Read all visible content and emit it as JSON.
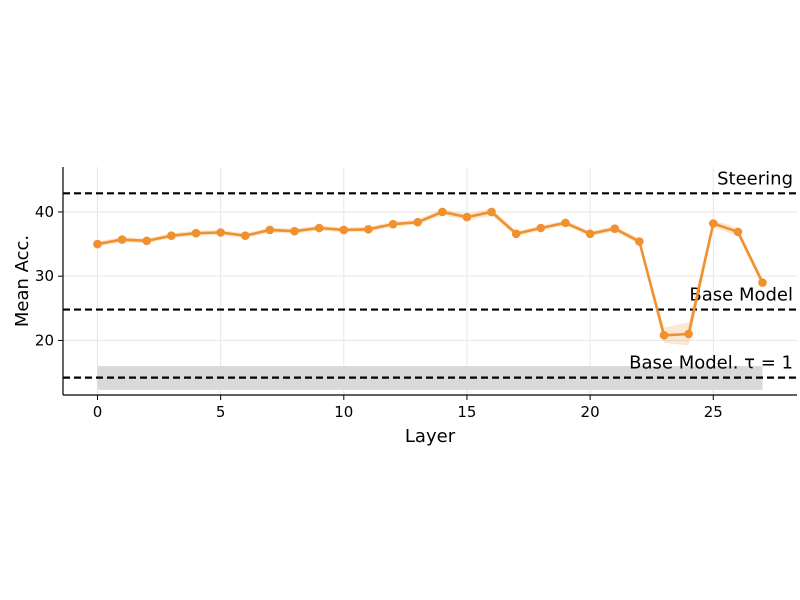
{
  "chart_data": {
    "type": "line",
    "title": "",
    "xlabel": "Layer",
    "ylabel": "Mean Acc.",
    "xlim": [
      -1.4,
      28.4
    ],
    "ylim": [
      11.5,
      47
    ],
    "xticks": [
      0,
      5,
      10,
      15,
      20,
      25
    ],
    "yticks": [
      20,
      30,
      40
    ],
    "grid": true,
    "series": [
      {
        "color": "#f0902e",
        "x": [
          0,
          1,
          2,
          3,
          4,
          5,
          6,
          7,
          8,
          9,
          10,
          11,
          12,
          13,
          14,
          15,
          16,
          17,
          18,
          19,
          20,
          21,
          22,
          23,
          24,
          25,
          26,
          27
        ],
        "y": [
          35.0,
          35.7,
          35.5,
          36.3,
          36.7,
          36.8,
          36.3,
          37.2,
          37.0,
          37.5,
          37.2,
          37.3,
          38.1,
          38.4,
          40.0,
          39.2,
          40.0,
          36.6,
          37.5,
          38.3,
          36.6,
          37.4,
          35.4,
          20.8,
          21.0,
          38.2,
          36.9,
          29.0
        ],
        "band_halfwidth": [
          0.4,
          0.4,
          0.4,
          0.4,
          0.4,
          0.4,
          0.4,
          0.4,
          0.4,
          0.4,
          0.4,
          0.4,
          0.4,
          0.4,
          0.5,
          0.5,
          0.6,
          0.4,
          0.4,
          0.4,
          0.4,
          0.4,
          0.5,
          1.2,
          1.8,
          0.6,
          0.6,
          0.6
        ]
      }
    ],
    "reference_lines": [
      {
        "label": "Steering",
        "y": 42.9,
        "style": "dashed",
        "color": "#000000"
      },
      {
        "label": "Base Model",
        "y": 24.8,
        "style": "dashed",
        "color": "#000000"
      },
      {
        "label": "Base Model. τ = 1",
        "y": 14.2,
        "style": "dashed",
        "color": "#000000",
        "band": [
          12.3,
          16.0
        ],
        "band_color": "#d9d9d9"
      }
    ]
  }
}
